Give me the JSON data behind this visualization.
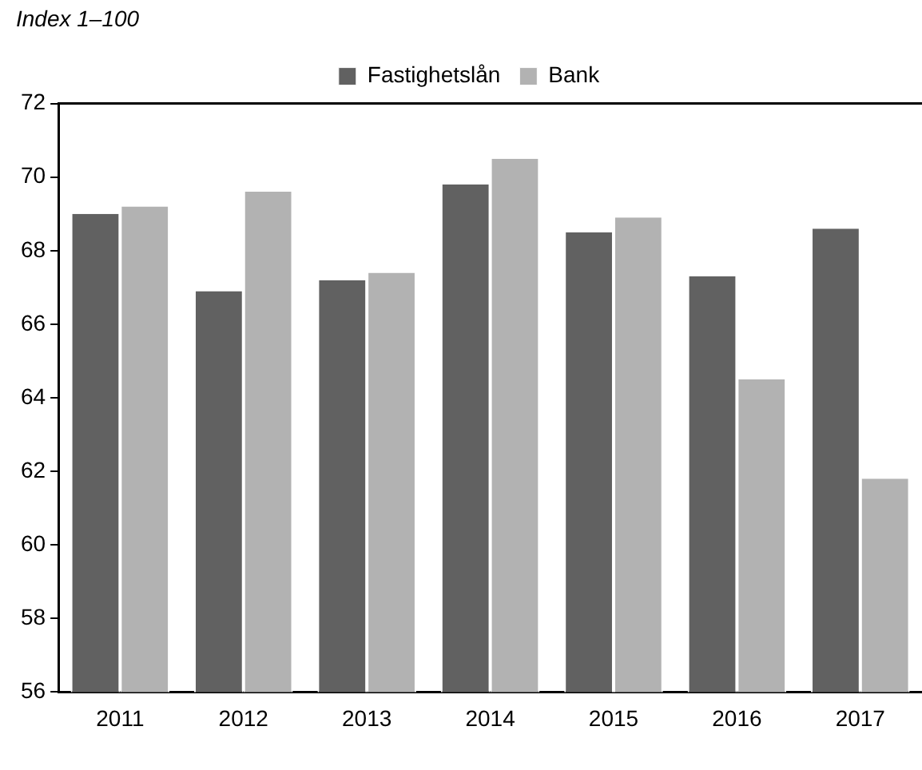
{
  "chart_data": {
    "type": "bar",
    "ylabel": "Index 1–100",
    "categories": [
      "2011",
      "2012",
      "2013",
      "2014",
      "2015",
      "2016",
      "2017"
    ],
    "series": [
      {
        "name": "Fastighetslån",
        "color": "#616161",
        "values": [
          69.0,
          66.9,
          67.2,
          69.8,
          68.5,
          67.3,
          68.6
        ]
      },
      {
        "name": "Bank",
        "color": "#b2b2b2",
        "values": [
          69.2,
          69.6,
          67.4,
          70.5,
          68.9,
          64.5,
          61.8
        ]
      }
    ],
    "ylim": [
      56,
      72
    ],
    "yticks": [
      56,
      58,
      60,
      62,
      64,
      66,
      68,
      70,
      72
    ],
    "grid": false,
    "legend": "top"
  }
}
